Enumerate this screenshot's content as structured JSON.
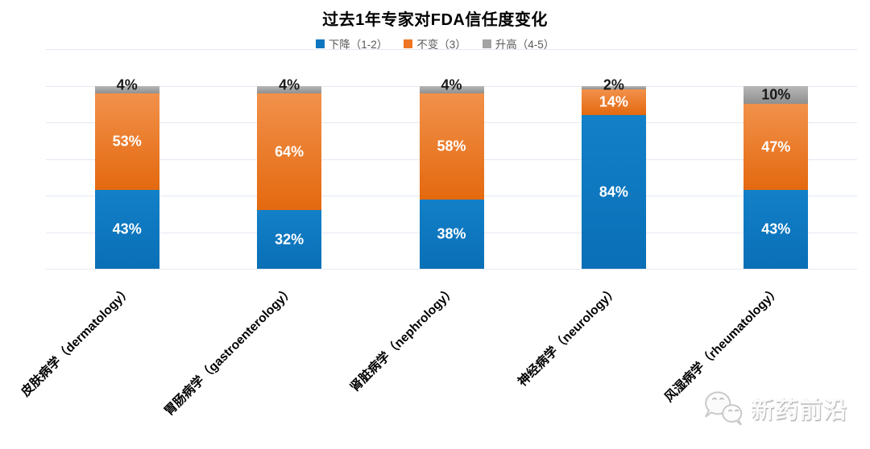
{
  "chart_data": {
    "type": "bar",
    "stacked": true,
    "title": "过去1年专家对FDA信任度变化",
    "categories": [
      "皮肤病学（dermatology）",
      "胃肠病学（gastroenterology）",
      "肾脏病学（nephrology）",
      "神经病学（neurology）",
      "风湿病学（rheumatology）"
    ],
    "series": [
      {
        "name": "下降（1-2）",
        "values": [
          43,
          32,
          38,
          84,
          43
        ],
        "color": "#0E76BF",
        "gradient": [
          "#1280C8",
          "#0A6FB6"
        ],
        "label_color": "#FFFFFF"
      },
      {
        "name": "不变（3）",
        "values": [
          53,
          64,
          58,
          14,
          47
        ],
        "color": "#ED7524",
        "gradient": [
          "#F1914B",
          "#E4690F"
        ],
        "label_color": "#FFFFFF"
      },
      {
        "name": "升高（4-5）",
        "values": [
          4,
          4,
          4,
          2,
          10
        ],
        "color": "#A3A3A3",
        "gradient": [
          "#B7B7B7",
          "#8F8F8F"
        ],
        "label_color": "#1A1A1A"
      }
    ],
    "value_suffix": "%",
    "ylim": [
      0,
      120
    ],
    "gridline_step": 20,
    "grid": true,
    "legend_position": "top",
    "xlabel": "",
    "ylabel": ""
  },
  "watermark": {
    "text": "新药前沿",
    "icon": "wechat-chat-bubbles-icon"
  }
}
